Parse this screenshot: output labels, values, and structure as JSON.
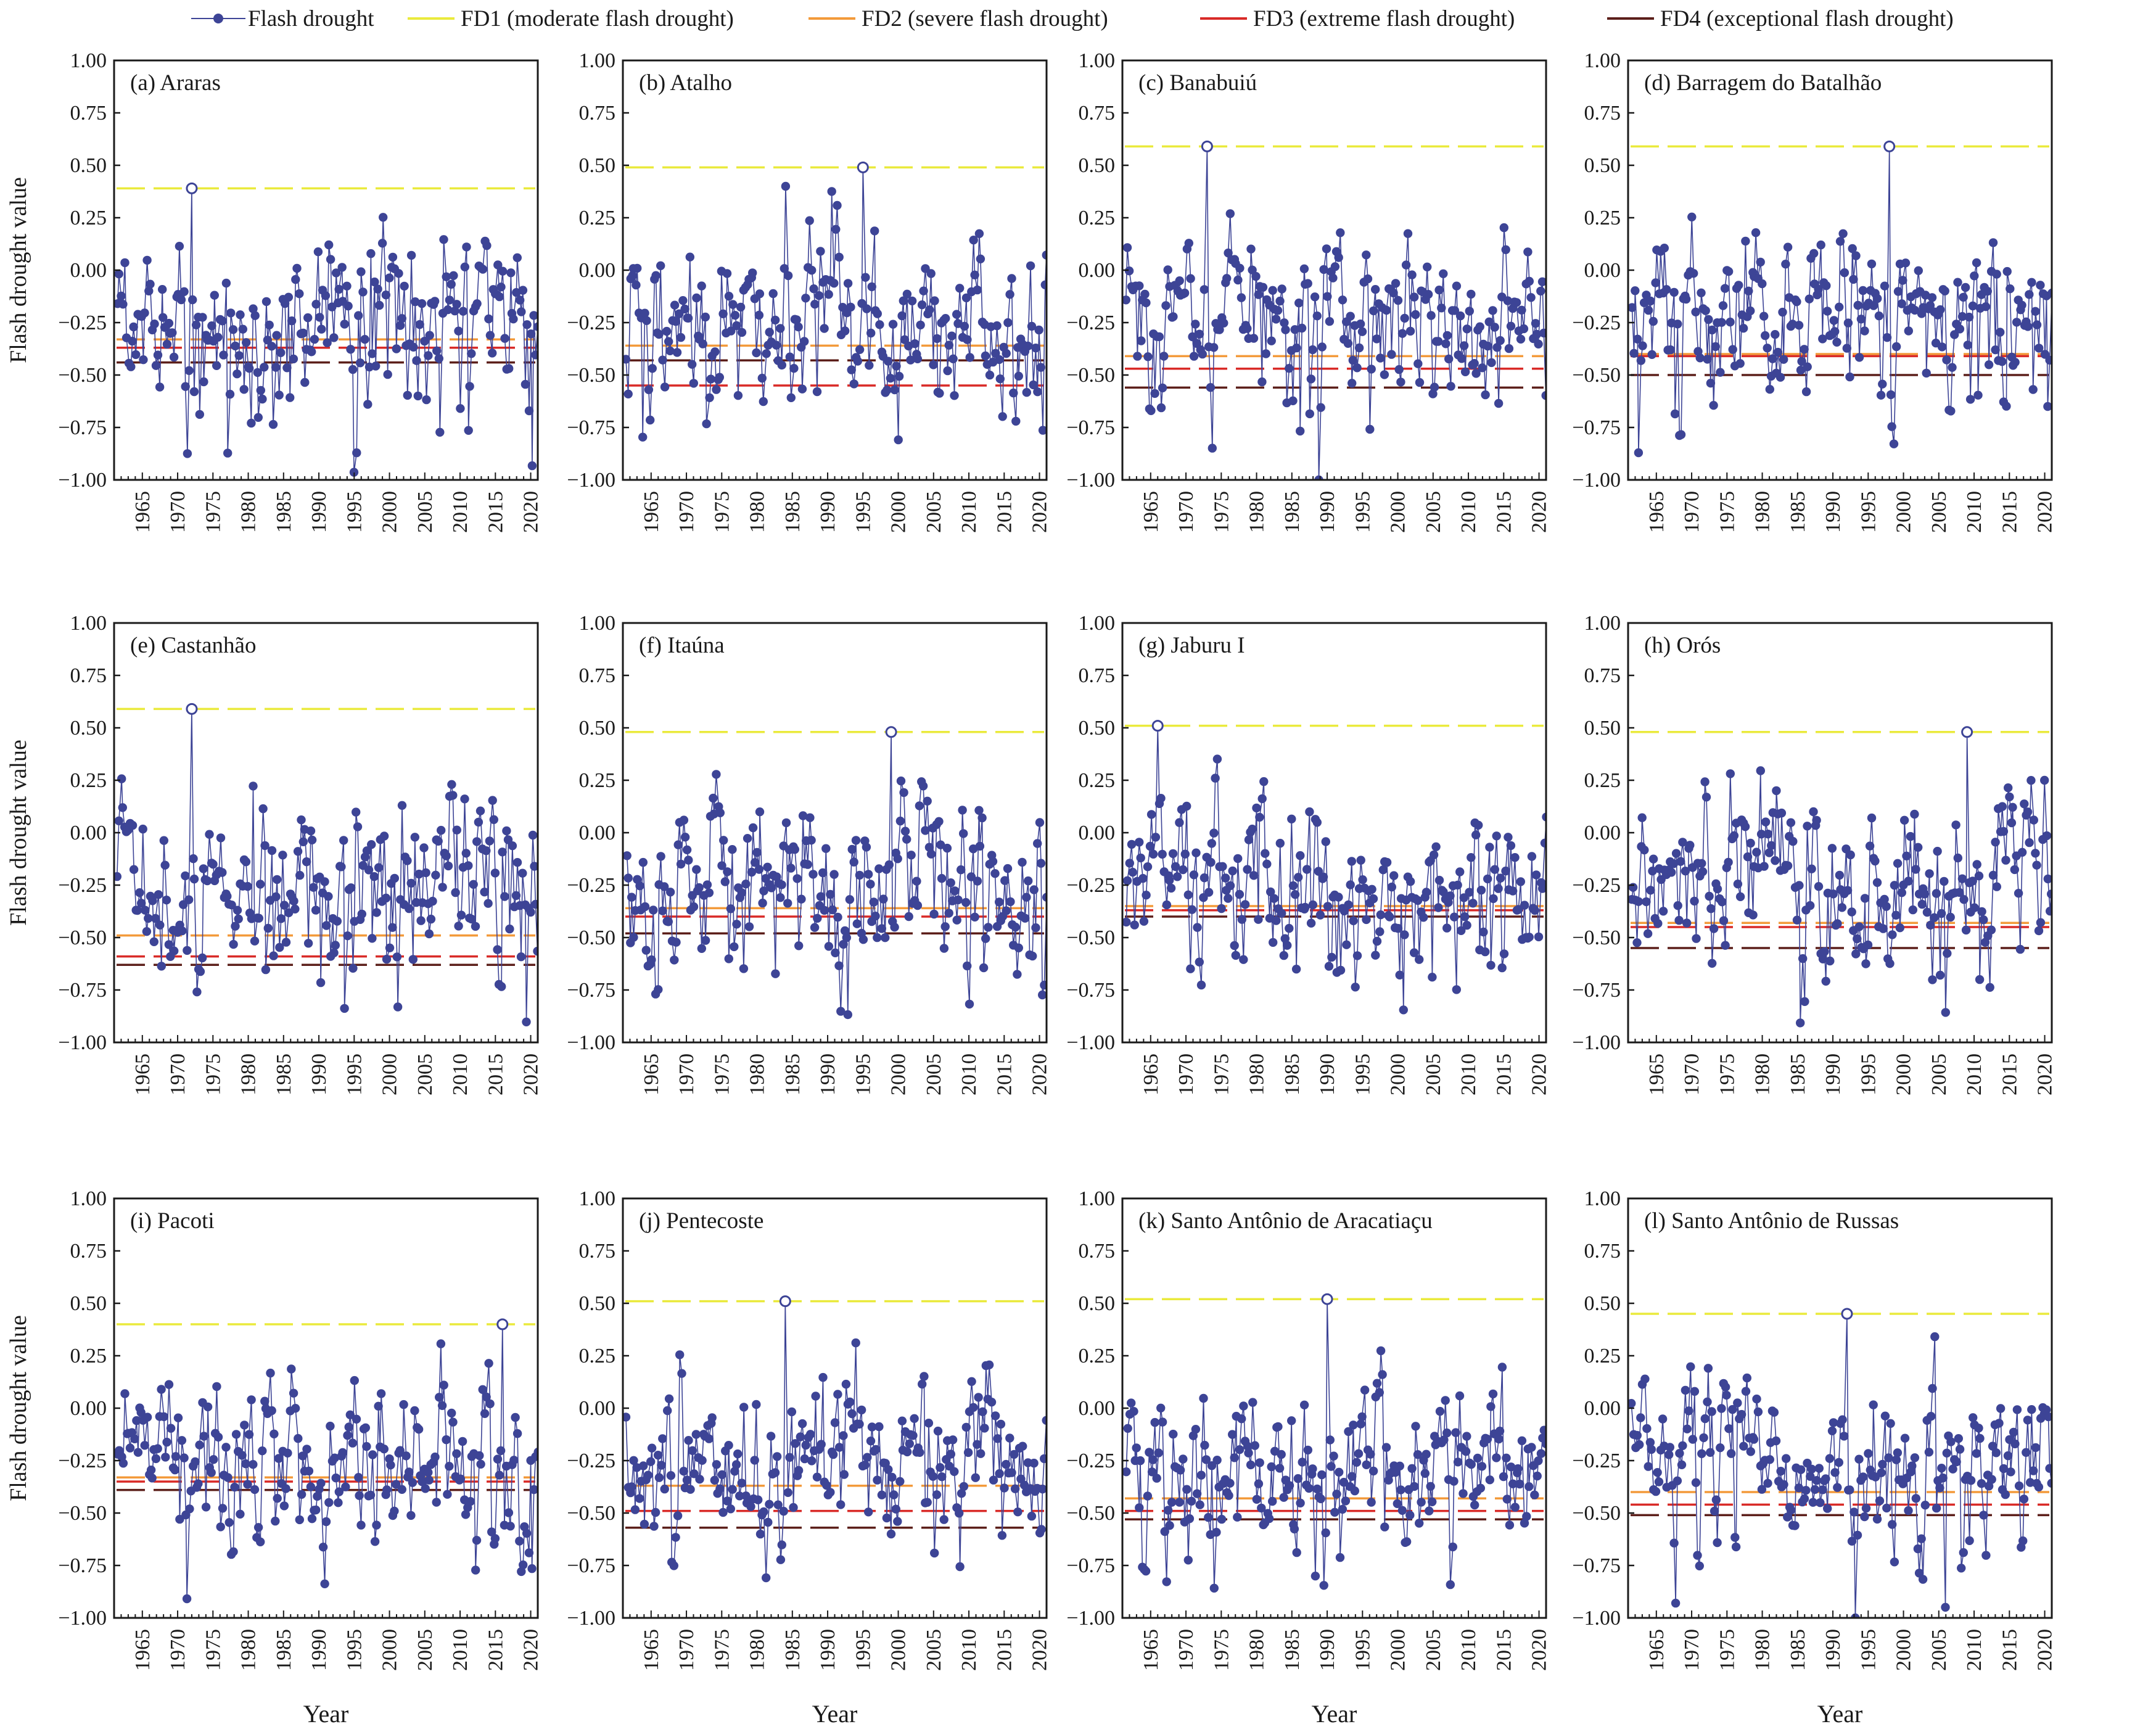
{
  "legend": {
    "flash": "Flash drought",
    "fd1": "FD1 (moderate flash drought)",
    "fd2": "FD2 (severe flash drought)",
    "fd3": "FD3 (extreme flash drought)",
    "fd4": "FD4 (exceptional flash drought)"
  },
  "colors": {
    "series": "#3d4496",
    "fd1": "#eaea3c",
    "fd2": "#f39a3a",
    "fd3": "#d92a27",
    "fd4": "#5c1f1a"
  },
  "axis": {
    "ylabel": "Flash drought value",
    "xlabel": "Year",
    "yticks": [
      "1.00",
      "0.75",
      "0.50",
      "0.25",
      "0.00",
      "−0.25",
      "−0.50",
      "−0.75",
      "−1.00"
    ],
    "xticks": [
      "1965",
      "1970",
      "1975",
      "1980",
      "1985",
      "1990",
      "1995",
      "2000",
      "2005",
      "2010",
      "2015",
      "2020"
    ]
  },
  "chart_data": [
    {
      "type": "line",
      "title": "(a) Araras",
      "x_range": [
        1961,
        2021
      ],
      "ylim": [
        -1.0,
        1.0
      ],
      "thresholds": {
        "fd1": 0.39,
        "fd2": -0.33,
        "fd3": -0.37,
        "fd4": -0.44
      },
      "peak": {
        "x": 1972,
        "y": 0.39
      },
      "seed": 11
    },
    {
      "type": "line",
      "title": "(b) Atalho",
      "x_range": [
        1961,
        2021
      ],
      "ylim": [
        -1.0,
        1.0
      ],
      "thresholds": {
        "fd1": 0.49,
        "fd2": -0.36,
        "fd3": -0.55,
        "fd4": -0.43
      },
      "peak": {
        "x": 1995,
        "y": 0.49
      },
      "seed": 23
    },
    {
      "type": "line",
      "title": "(c) Banabuiú",
      "x_range": [
        1961,
        2021
      ],
      "ylim": [
        -1.0,
        1.0
      ],
      "thresholds": {
        "fd1": 0.59,
        "fd2": -0.41,
        "fd3": -0.47,
        "fd4": -0.56
      },
      "peak": {
        "x": 1973,
        "y": 0.59
      },
      "seed": 37
    },
    {
      "type": "line",
      "title": "(d) Barragem do Batalhão",
      "x_range": [
        1961,
        2021
      ],
      "ylim": [
        -1.0,
        1.0
      ],
      "thresholds": {
        "fd1": 0.59,
        "fd2": -0.4,
        "fd3": -0.41,
        "fd4": -0.5
      },
      "peak": {
        "x": 1998,
        "y": 0.59
      },
      "seed": 41
    },
    {
      "type": "line",
      "title": "(e) Castanhão",
      "x_range": [
        1961,
        2021
      ],
      "ylim": [
        -1.0,
        1.0
      ],
      "thresholds": {
        "fd1": 0.59,
        "fd2": -0.49,
        "fd3": -0.59,
        "fd4": -0.63
      },
      "peak": {
        "x": 1972,
        "y": 0.59
      },
      "seed": 53
    },
    {
      "type": "line",
      "title": "(f) Itaúna",
      "x_range": [
        1961,
        2021
      ],
      "ylim": [
        -1.0,
        1.0
      ],
      "thresholds": {
        "fd1": 0.48,
        "fd2": -0.36,
        "fd3": -0.4,
        "fd4": -0.48
      },
      "peak": {
        "x": 1999,
        "y": 0.48
      },
      "seed": 67
    },
    {
      "type": "line",
      "title": "(g) Jaburu I",
      "x_range": [
        1961,
        2021
      ],
      "ylim": [
        -1.0,
        1.0
      ],
      "thresholds": {
        "fd1": 0.51,
        "fd2": -0.35,
        "fd3": -0.37,
        "fd4": -0.4
      },
      "peak": {
        "x": 1966,
        "y": 0.51
      },
      "seed": 71
    },
    {
      "type": "line",
      "title": "(h) Orós",
      "x_range": [
        1961,
        2021
      ],
      "ylim": [
        -1.0,
        1.0
      ],
      "thresholds": {
        "fd1": 0.48,
        "fd2": -0.43,
        "fd3": -0.45,
        "fd4": -0.55
      },
      "peak": {
        "x": 2009,
        "y": 0.48
      },
      "seed": 83
    },
    {
      "type": "line",
      "title": "(i) Pacoti",
      "x_range": [
        1961,
        2021
      ],
      "ylim": [
        -1.0,
        1.0
      ],
      "thresholds": {
        "fd1": 0.4,
        "fd2": -0.33,
        "fd3": -0.35,
        "fd4": -0.39
      },
      "peak": {
        "x": 2016,
        "y": 0.4
      },
      "seed": 97
    },
    {
      "type": "line",
      "title": "(j) Pentecoste",
      "x_range": [
        1961,
        2021
      ],
      "ylim": [
        -1.0,
        1.0
      ],
      "thresholds": {
        "fd1": 0.51,
        "fd2": -0.37,
        "fd3": -0.49,
        "fd4": -0.57
      },
      "peak": {
        "x": 1984,
        "y": 0.51
      },
      "seed": 101
    },
    {
      "type": "line",
      "title": "(k) Santo Antônio de Aracatiaçu",
      "x_range": [
        1961,
        2021
      ],
      "ylim": [
        -1.0,
        1.0
      ],
      "thresholds": {
        "fd1": 0.52,
        "fd2": -0.43,
        "fd3": -0.49,
        "fd4": -0.53
      },
      "peak": {
        "x": 1990,
        "y": 0.52
      },
      "seed": 113
    },
    {
      "type": "line",
      "title": "(l) Santo Antônio de Russas",
      "x_range": [
        1961,
        2021
      ],
      "ylim": [
        -1.0,
        1.0
      ],
      "thresholds": {
        "fd1": 0.45,
        "fd2": -0.4,
        "fd3": -0.46,
        "fd4": -0.51
      },
      "peak": {
        "x": 1992,
        "y": 0.45
      },
      "seed": 127
    }
  ]
}
